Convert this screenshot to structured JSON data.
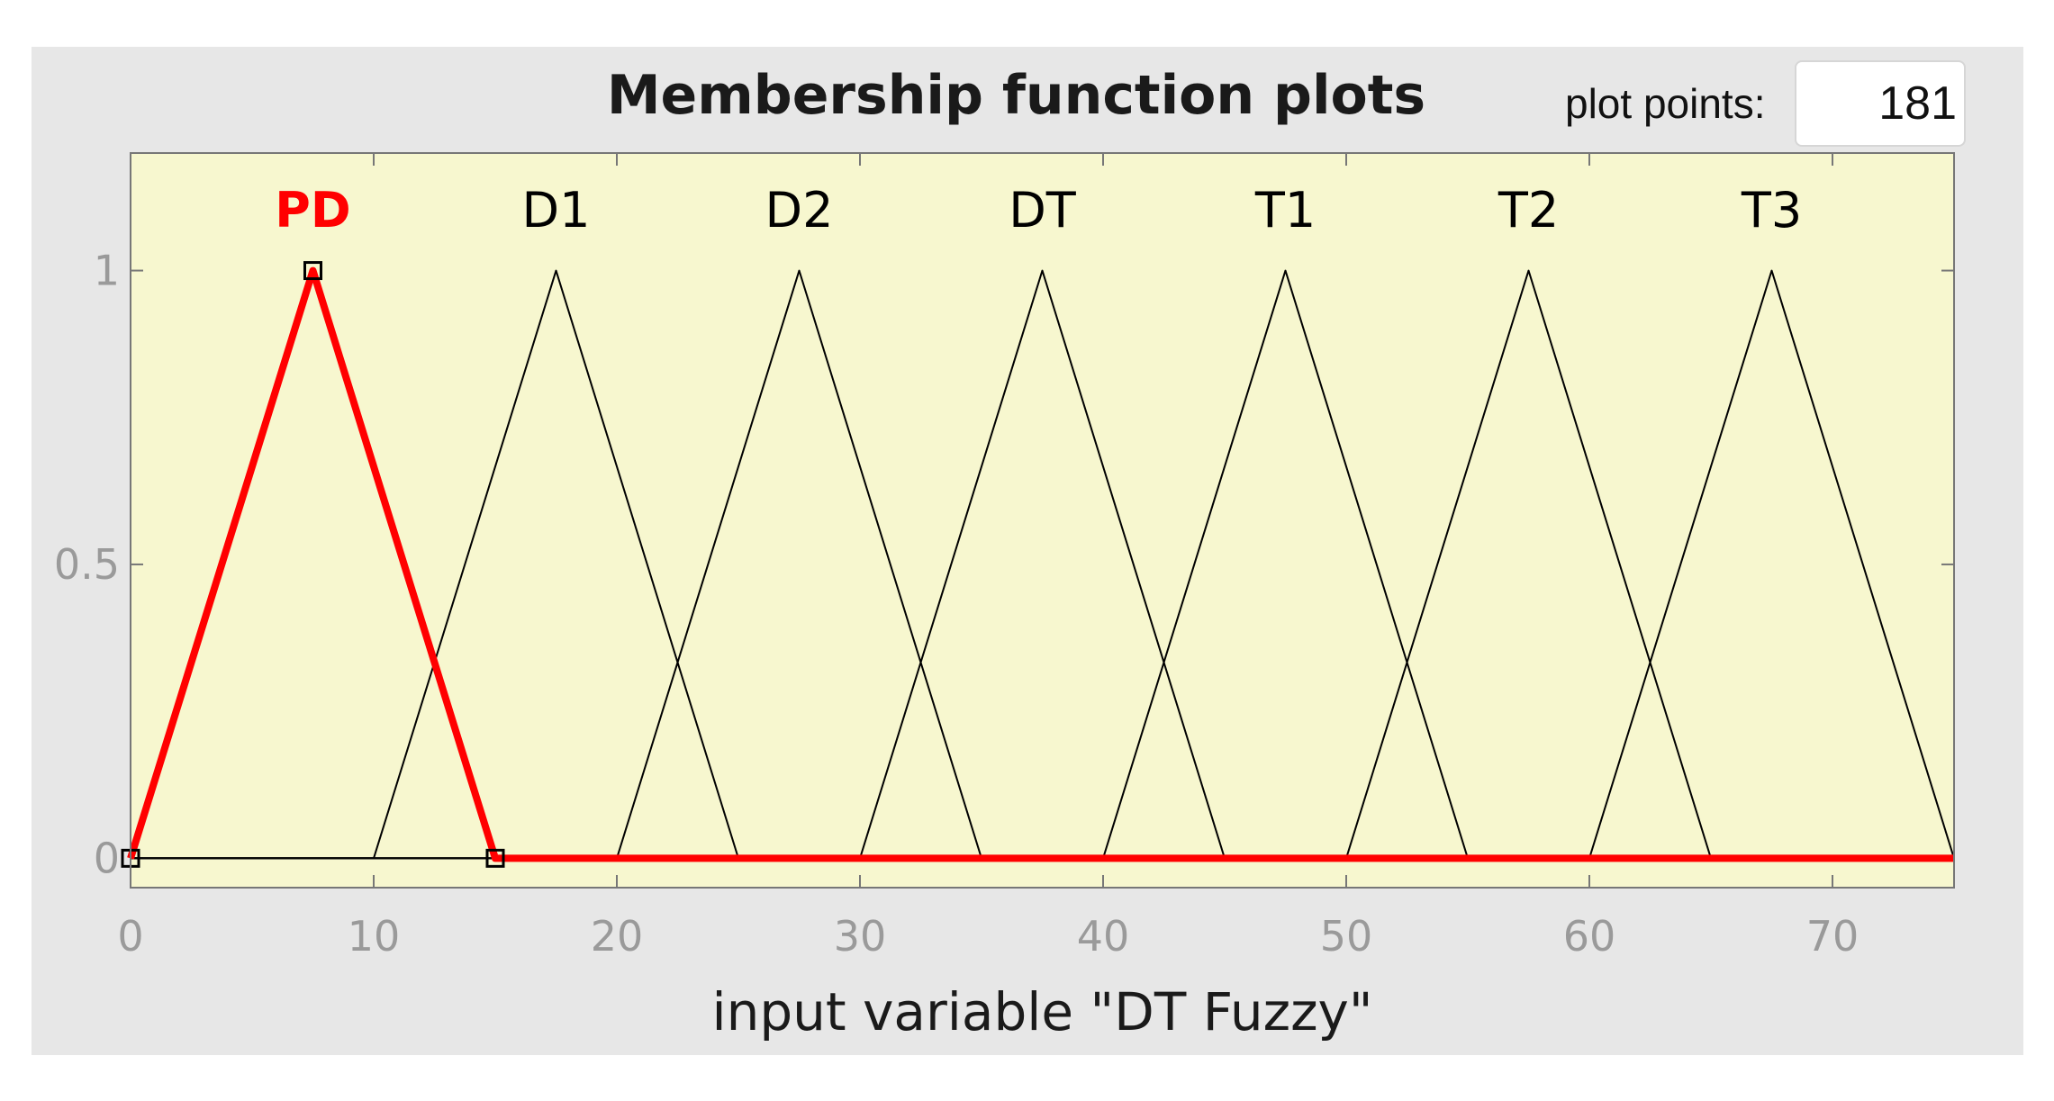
{
  "panel": {
    "title": "Membership function plots",
    "plot_points_label": "plot points:",
    "plot_points_value": "181"
  },
  "colors": {
    "panel_background": "#e7e7e7",
    "plot_background": "#f7f7cf",
    "selected": "#ff0000",
    "curve": "#000000",
    "tick_text": "#9a9a9a"
  },
  "chart_data": {
    "type": "line",
    "title": "Membership function plots",
    "xlabel": "input variable \"DT Fuzzy\"",
    "ylabel": "",
    "xlim": [
      0,
      75
    ],
    "ylim": [
      -0.05,
      1.2
    ],
    "xticks": [
      0,
      10,
      20,
      30,
      40,
      50,
      60,
      70
    ],
    "yticks": [
      0,
      0.5,
      1
    ],
    "ytick_labels": [
      "0",
      "0.5",
      "1"
    ],
    "grid": false,
    "selected_series": "PD",
    "series": [
      {
        "name": "PD",
        "type": "trimf",
        "params": [
          0,
          7.5,
          15
        ],
        "selected": true
      },
      {
        "name": "D1",
        "type": "trimf",
        "params": [
          10,
          17.5,
          25
        ],
        "selected": false
      },
      {
        "name": "D2",
        "type": "trimf",
        "params": [
          20,
          27.5,
          35
        ],
        "selected": false
      },
      {
        "name": "DT",
        "type": "trimf",
        "params": [
          30,
          37.5,
          45
        ],
        "selected": false
      },
      {
        "name": "T1",
        "type": "trimf",
        "params": [
          40,
          47.5,
          55
        ],
        "selected": false
      },
      {
        "name": "T2",
        "type": "trimf",
        "params": [
          50,
          57.5,
          65
        ],
        "selected": false
      },
      {
        "name": "T3",
        "type": "trimf",
        "params": [
          60,
          67.5,
          75
        ],
        "selected": false
      }
    ]
  }
}
